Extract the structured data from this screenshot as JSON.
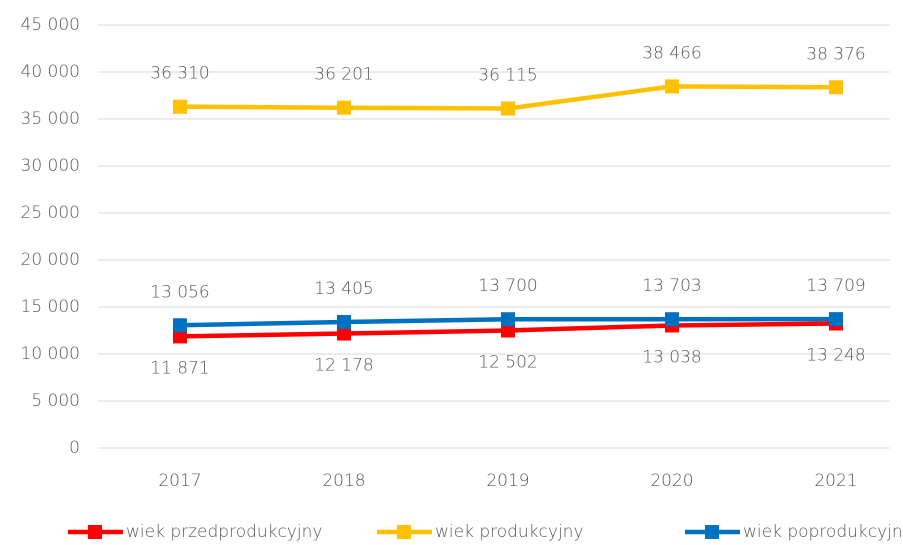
{
  "chart_data": {
    "type": "line",
    "categories": [
      "2017",
      "2018",
      "2019",
      "2020",
      "2021"
    ],
    "series": [
      {
        "name": "wiek przedprodukcyjny",
        "color": "#ff0000",
        "values": [
          11871,
          12178,
          12502,
          13038,
          13248
        ],
        "value_labels": [
          "11 871",
          "12 178",
          "12 502",
          "13 038",
          "13 248"
        ]
      },
      {
        "name": "wiek produkcyjny",
        "color": "#ffc000",
        "values": [
          36310,
          36201,
          36115,
          38466,
          38376
        ],
        "value_labels": [
          "36 310",
          "36 201",
          "36 115",
          "38 466",
          "38 376"
        ]
      },
      {
        "name": "wiek poprodukcyjny",
        "color": "#0070c0",
        "values": [
          13056,
          13405,
          13700,
          13703,
          13709
        ],
        "value_labels": [
          "13 056",
          "13 405",
          "13 700",
          "13 703",
          "13 709"
        ]
      }
    ],
    "ylim": [
      0,
      45000
    ],
    "yticks": [
      0,
      {
        "value": 5000,
        "label": "5 000"
      },
      {
        "value": 10000,
        "label": "10 000"
      },
      {
        "value": 15000,
        "label": "15 000"
      },
      {
        "value": 20000,
        "label": "20 000"
      },
      {
        "value": 25000,
        "label": "25 000"
      },
      {
        "value": 30000,
        "label": "30 000"
      },
      {
        "value": 35000,
        "label": "35 000"
      },
      {
        "value": 40000,
        "label": "40 000"
      },
      {
        "value": 45000,
        "label": "45 000"
      }
    ],
    "grid": true,
    "legend": "bottom"
  }
}
